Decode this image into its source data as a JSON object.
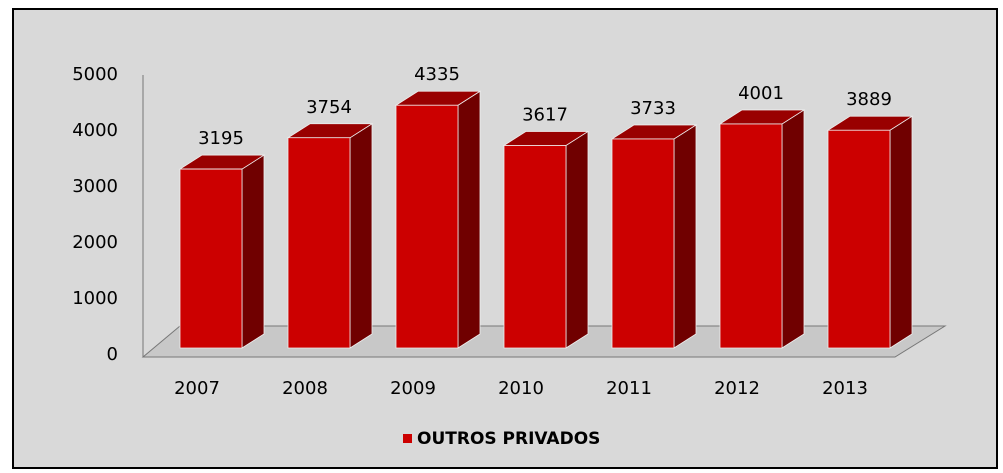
{
  "chart_data": {
    "type": "bar",
    "categories": [
      "2007",
      "2008",
      "2009",
      "2010",
      "2011",
      "2012",
      "2013"
    ],
    "series": [
      {
        "name": "OUTROS PRIVADOS",
        "color": "#cc0000",
        "values": [
          3195,
          3754,
          4335,
          3617,
          3733,
          4001,
          3889
        ]
      }
    ],
    "ylim": [
      0,
      5000
    ],
    "yticks": [
      0,
      1000,
      2000,
      3000,
      4000,
      5000
    ],
    "grid": false,
    "legend": "bottom"
  }
}
